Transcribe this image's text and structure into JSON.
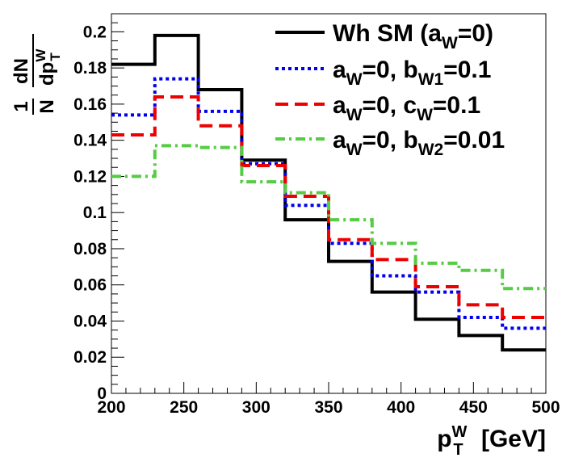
{
  "chart_data": {
    "type": "line",
    "subtype": "histogram-step",
    "x_bin_edges": [
      200,
      230,
      260,
      290,
      320,
      350,
      380,
      410,
      440,
      470,
      500
    ],
    "xlim": [
      200,
      500
    ],
    "ylim": [
      0,
      0.21
    ],
    "x_ticks": [
      200,
      250,
      300,
      350,
      400,
      450,
      500
    ],
    "y_ticks": [
      0,
      0.02,
      0.04,
      0.06,
      0.08,
      0.1,
      0.12,
      0.14,
      0.16,
      0.18,
      0.2
    ],
    "x_tick_labels": [
      "200",
      "250",
      "300",
      "350",
      "400",
      "450",
      "500"
    ],
    "y_tick_labels": [
      "0",
      "0.02",
      "0.04",
      "0.06",
      "0.08",
      "0.1",
      "0.12",
      "0.14",
      "0.16",
      "0.18",
      "0.2"
    ],
    "xlabel": {
      "base": "p",
      "sup": "W",
      "sub": "T",
      "unit": "[GeV]"
    },
    "ylabel": {
      "prefix_num": "1",
      "prefix_den": "N",
      "num": "dN",
      "den": "dp",
      "sup": "W",
      "sub": "T"
    },
    "legend_position": "top-right",
    "series": [
      {
        "name": "Wh SM (a_W=0)",
        "color": "#000000",
        "style": "solid",
        "values": [
          0.182,
          0.198,
          0.168,
          0.129,
          0.096,
          0.073,
          0.056,
          0.041,
          0.032,
          0.024
        ]
      },
      {
        "name": "a_W=0, b_W1=0.1",
        "color": "#0000ee",
        "style": "dotted",
        "values": [
          0.154,
          0.174,
          0.156,
          0.127,
          0.104,
          0.083,
          0.065,
          0.056,
          0.042,
          0.036
        ]
      },
      {
        "name": "a_W=0, c_W=0.1",
        "color": "#ee0000",
        "style": "dashed",
        "values": [
          0.143,
          0.164,
          0.148,
          0.126,
          0.109,
          0.085,
          0.074,
          0.059,
          0.049,
          0.042
        ]
      },
      {
        "name": "a_W=0, b_W2=0.01",
        "color": "#55cc44",
        "style": "dashdot",
        "values": [
          0.12,
          0.137,
          0.136,
          0.117,
          0.111,
          0.096,
          0.083,
          0.072,
          0.068,
          0.058
        ]
      }
    ],
    "legend": [
      {
        "style": "solid",
        "color": "#000000",
        "parts": [
          {
            "t": "Wh SM (a"
          },
          {
            "t": "W",
            "sub": true
          },
          {
            "t": "=0)"
          }
        ]
      },
      {
        "style": "dotted",
        "color": "#0000ee",
        "parts": [
          {
            "t": "a"
          },
          {
            "t": "W",
            "sub": true
          },
          {
            "t": "=0, b"
          },
          {
            "t": "W1",
            "sub": true
          },
          {
            "t": "=0.1"
          }
        ]
      },
      {
        "style": "dashed",
        "color": "#ee0000",
        "parts": [
          {
            "t": "a"
          },
          {
            "t": "W",
            "sub": true
          },
          {
            "t": "=0, c"
          },
          {
            "t": "W",
            "sub": true
          },
          {
            "t": "=0.1"
          }
        ]
      },
      {
        "style": "dashdot",
        "color": "#55cc44",
        "parts": [
          {
            "t": "a"
          },
          {
            "t": "W",
            "sub": true
          },
          {
            "t": "=0, b"
          },
          {
            "t": "W2",
            "sub": true
          },
          {
            "t": "=0.01"
          }
        ]
      }
    ]
  }
}
